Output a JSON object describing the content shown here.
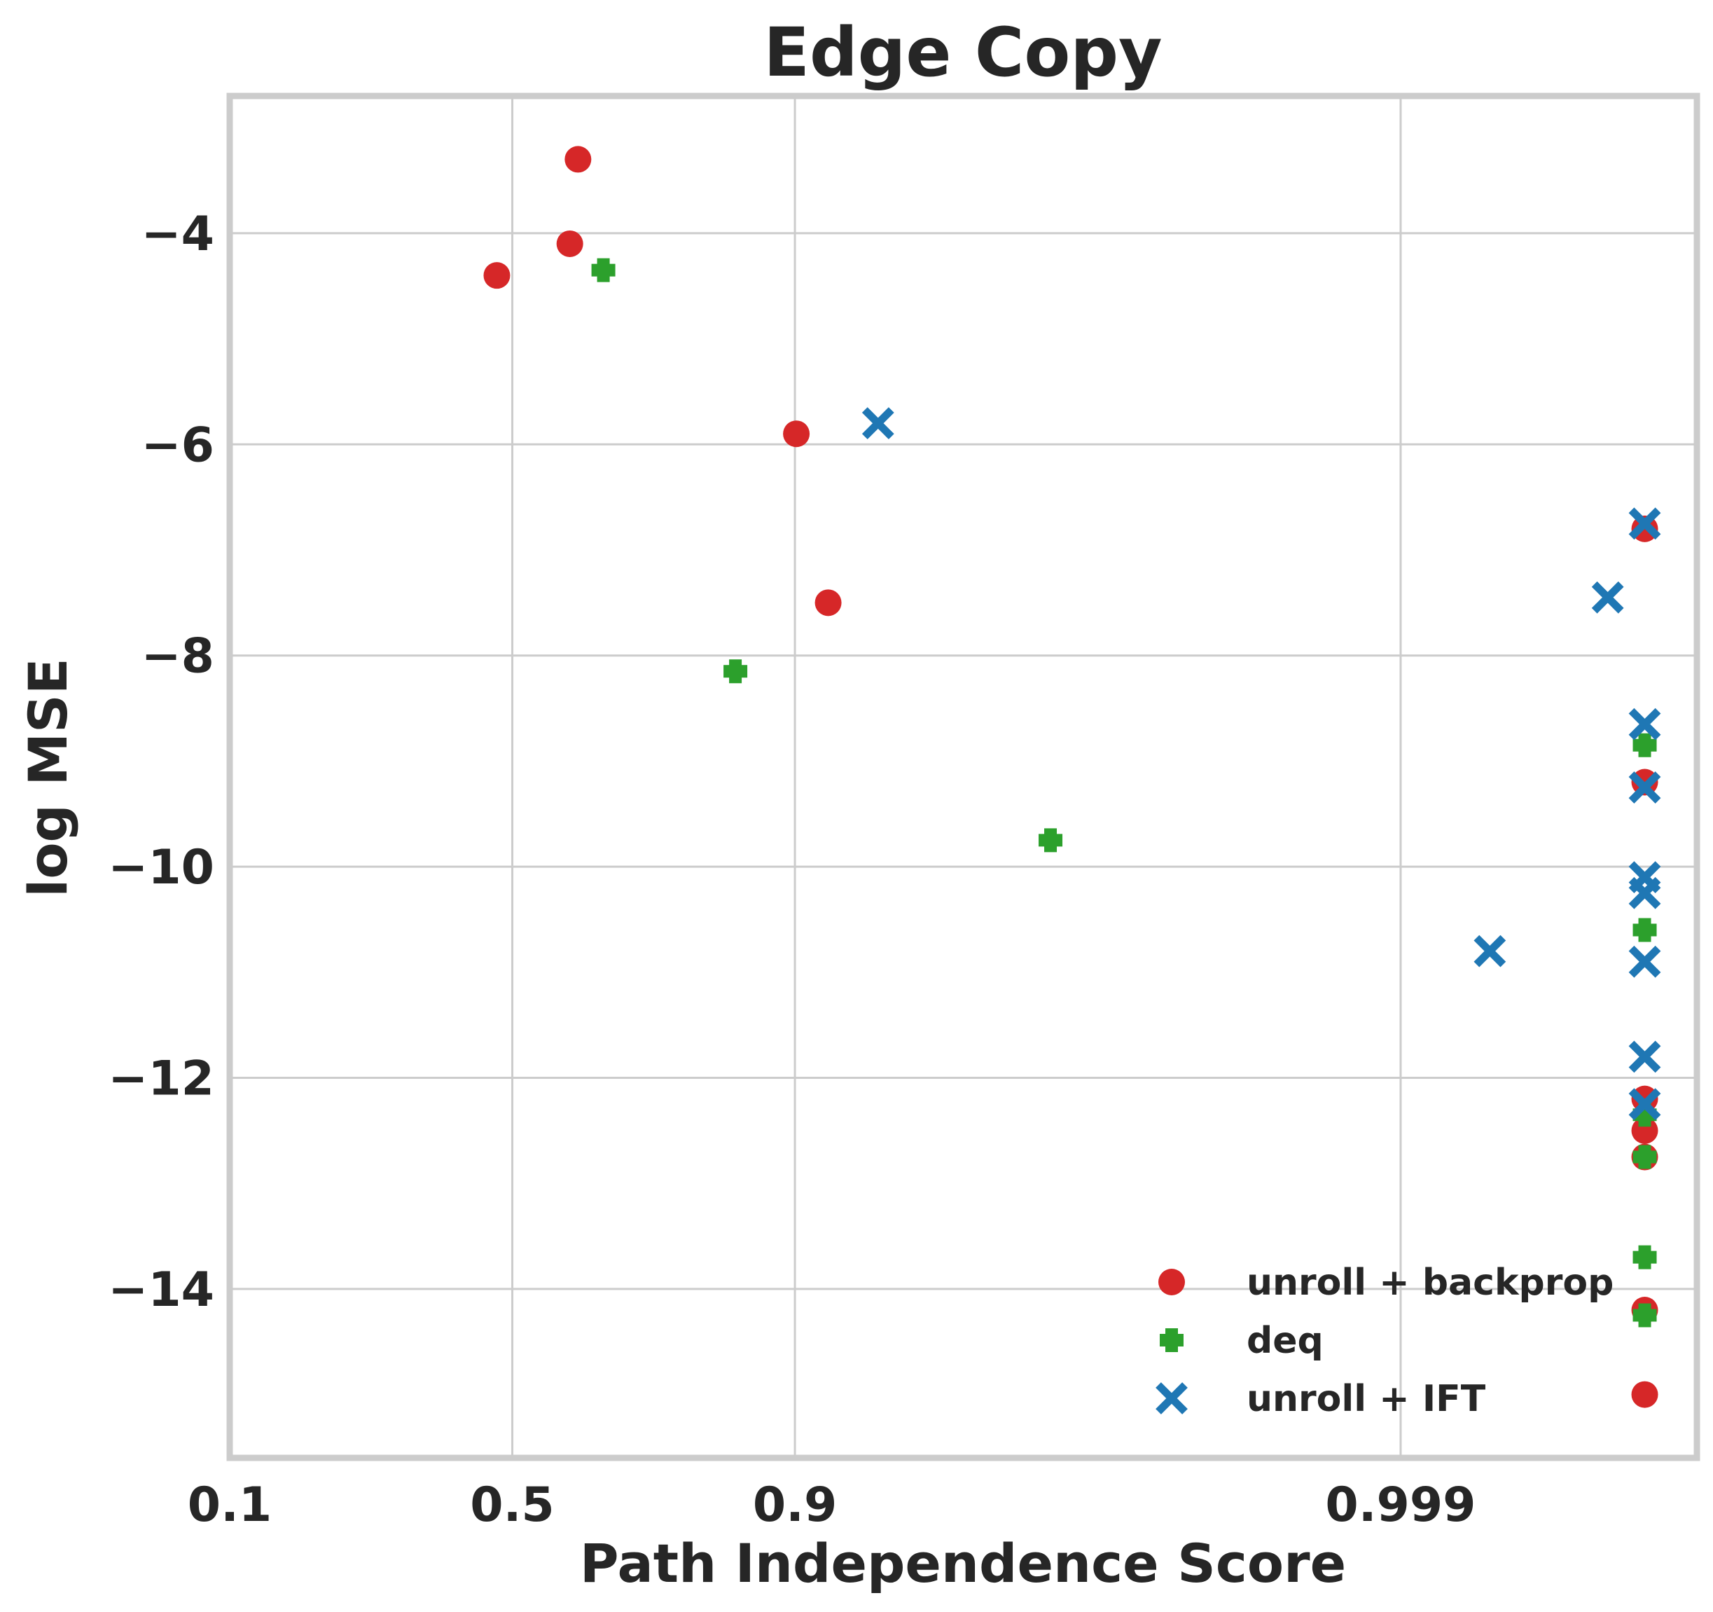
{
  "chart_data": {
    "type": "scatter",
    "title": "Edge Copy",
    "xlabel": "Path Independence Score",
    "ylabel": "log MSE",
    "x_scale": "logit",
    "x_ticks": [
      0.1,
      0.5,
      0.9,
      0.999
    ],
    "x_tick_labels": [
      "0.1",
      "0.5",
      "0.9",
      "0.999"
    ],
    "y_ticks": [
      -4,
      -6,
      -8,
      -10,
      -12,
      -14
    ],
    "y_tick_labels": [
      "−4",
      "−6",
      "−8",
      "−10",
      "−12",
      "−14"
    ],
    "xlim": [
      0.1,
      0.9999
    ],
    "ylim": [
      -15.6,
      -2.7
    ],
    "grid": true,
    "legend_position": "lower-right",
    "series": [
      {
        "name": "unroll + backprop",
        "marker": "circle",
        "color": "#d62728",
        "points": [
          {
            "x": 0.47,
            "y": -4.4
          },
          {
            "x": 0.61,
            "y": -4.1
          },
          {
            "x": 0.625,
            "y": -3.3
          },
          {
            "x": 0.901,
            "y": -5.9
          },
          {
            "x": 0.921,
            "y": -7.5
          },
          {
            "x": 0.99985,
            "y": -6.8
          },
          {
            "x": 0.99985,
            "y": -9.2
          },
          {
            "x": 0.99985,
            "y": -12.2
          },
          {
            "x": 0.99985,
            "y": -12.5
          },
          {
            "x": 0.99985,
            "y": -12.75
          },
          {
            "x": 0.99985,
            "y": -14.2
          },
          {
            "x": 0.99985,
            "y": -15.0
          }
        ]
      },
      {
        "name": "deq",
        "marker": "plus",
        "color": "#2ca02c",
        "points": [
          {
            "x": 0.67,
            "y": -4.35
          },
          {
            "x": 0.85,
            "y": -8.15
          },
          {
            "x": 0.985,
            "y": -9.75
          },
          {
            "x": 0.99985,
            "y": -8.85
          },
          {
            "x": 0.99985,
            "y": -10.6
          },
          {
            "x": 0.99985,
            "y": -12.35
          },
          {
            "x": 0.99985,
            "y": -12.75
          },
          {
            "x": 0.99985,
            "y": -13.7
          },
          {
            "x": 0.99985,
            "y": -14.25
          }
        ]
      },
      {
        "name": "unroll + IFT",
        "marker": "x",
        "color": "#1f77b4",
        "points": [
          {
            "x": 0.945,
            "y": -5.8
          },
          {
            "x": 0.99985,
            "y": -6.75
          },
          {
            "x": 0.9998,
            "y": -7.45
          },
          {
            "x": 0.99985,
            "y": -8.65
          },
          {
            "x": 0.99985,
            "y": -9.25
          },
          {
            "x": 0.99985,
            "y": -10.1
          },
          {
            "x": 0.99985,
            "y": -10.25
          },
          {
            "x": 0.9995,
            "y": -10.8
          },
          {
            "x": 0.99985,
            "y": -10.9
          },
          {
            "x": 0.99985,
            "y": -11.8
          },
          {
            "x": 0.99985,
            "y": -12.25
          }
        ]
      }
    ]
  }
}
